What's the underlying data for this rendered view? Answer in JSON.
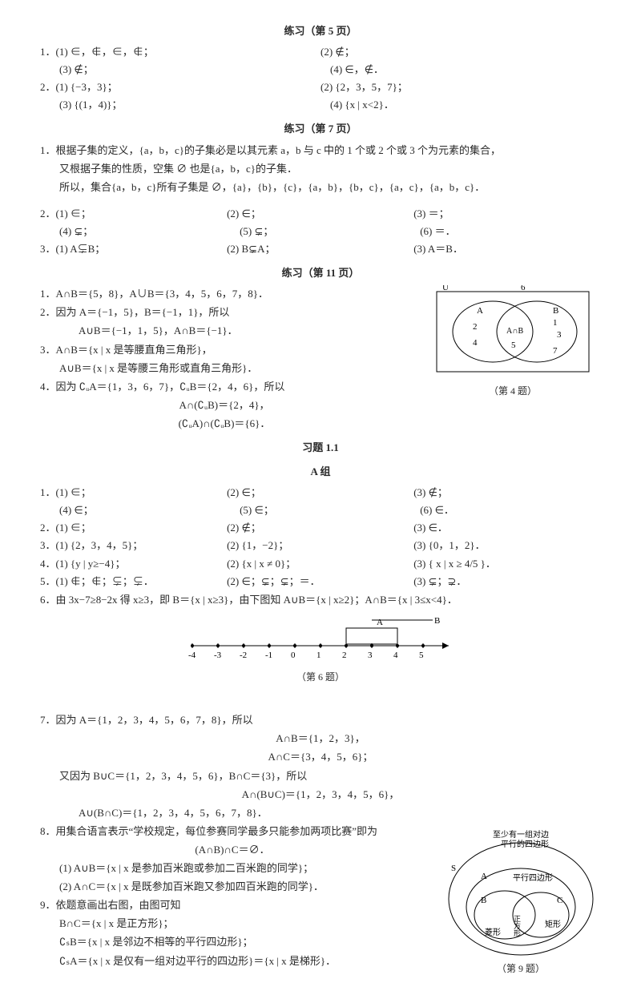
{
  "page5": {
    "title": "练习（第 5 页）",
    "q1": {
      "p1": "1．(1) ∈，∉，∈，∉；",
      "p2": "(2) ∉；",
      "p3": "(3) ∉；",
      "p4": "(4) ∈，∉．"
    },
    "q2": {
      "p1": "2．(1) {−3，3}；",
      "p2": "(2) {2，3，5，7}；",
      "p3": "(3) {(1，4)}；",
      "p4": "(4) {x | x<2}．"
    }
  },
  "page7": {
    "title": "练习（第 7 页）",
    "q1a": "1．根据子集的定义，{a，b，c}的子集必是以其元素 a，b 与 c 中的 1 个或 2 个或 3 个为元素的集合，",
    "q1b": "又根据子集的性质，空集 ∅ 也是{a，b，c}的子集．",
    "q1c": "所以，集合{a，b，c}所有子集是 ∅，{a}，{b}，{c}，{a，b}，{b，c}，{a，c}，{a，b，c}．",
    "q2": {
      "p1": "2．(1) ∈；",
      "p2": "(2) ∈；",
      "p3": "(3) ＝；",
      "p4": "(4) ⊊；",
      "p5": "(5) ⊊；",
      "p6": "(6) ＝．"
    },
    "q3": {
      "p1": "3．(1) A⊊B；",
      "p2": "(2) B⊊A；",
      "p3": "(3) A＝B．"
    }
  },
  "page11": {
    "title": "练习（第 11 页）",
    "q1": "1．A∩B＝{5，8}，A∪B＝{3，4，5，6，7，8}．",
    "q2a": "2．因为 A＝{−1，5}，B＝{−1，1}，所以",
    "q2b": "A∪B＝{−1，1，5}，A∩B＝{−1}．",
    "q3a": "3．A∩B＝{x | x 是等腰直角三角形}，",
    "q3b": "A∪B＝{x | x 是等腰三角形或直角三角形}．",
    "q4a": "4．因为 ∁ᵤA＝{1，3，6，7}，∁ᵤB＝{2，4，6}，所以",
    "q4b": "A∩(∁ᵤB)＝{2，4}，",
    "q4c": "(∁ᵤA)∩(∁ᵤB)＝{6}．",
    "venn": {
      "U": "U",
      "six": "6",
      "A": "A",
      "B": "B",
      "n2": "2",
      "n4": "4",
      "n5": "5",
      "n1": "1",
      "n3": "3",
      "n7": "7",
      "inter": "A∩B",
      "cap": "（第 4 题）"
    }
  },
  "ex11": {
    "title1": "习题 1.1",
    "title2": "A 组",
    "q1": {
      "p1": "1．(1) ∈；",
      "p2": "(2) ∈；",
      "p3": "(3) ∉；",
      "p4": "(4) ∈；",
      "p5": "(5) ∈；",
      "p6": "(6) ∈．"
    },
    "q2": {
      "p1": "2．(1) ∈；",
      "p2": "(2) ∉；",
      "p3": "(3) ∈．"
    },
    "q3": {
      "p1": "3．(1) {2，3，4，5}；",
      "p2": "(2) {1，−2}；",
      "p3": "(3) {0，1，2}．"
    },
    "q4": {
      "p1": "4．(1) {y | y≥−4}；",
      "p2": "(2) {x | x ≠ 0}；",
      "p3": "(3) { x | x ≥ 4/5 }．"
    },
    "q5": {
      "p1": "5．(1) ∉；∉；⊊；⊊．",
      "p2": "(2) ∈；⊊；⊊；＝．",
      "p3": "(3) ⊊；⊋．"
    },
    "q6": "6．由 3x−7≥8−2x 得 x≥3，即 B＝{x | x≥3}，由下图知 A∪B＝{x | x≥2}；A∩B＝{x | 3≤x<4}．",
    "numline": {
      "ticks": [
        "-4",
        "-3",
        "-2",
        "-1",
        "0",
        "1",
        "2",
        "3",
        "4",
        "5"
      ],
      "A": "A",
      "B": "B",
      "cap": "（第 6 题）"
    },
    "q7a": "7．因为 A＝{1，2，3，4，5，6，7，8}，所以",
    "q7b": "A∩B＝{1，2，3}，",
    "q7c": "A∩C＝{3，4，5，6}；",
    "q7d": "又因为 B∪C＝{1，2，3，4，5，6}，B∩C＝{3}，所以",
    "q7e": "A∩(B∪C)＝{1，2，3，4，5，6}，",
    "q7f": "A∪(B∩C)＝{1，2，3，4，5，6，7，8}．",
    "q8a": "8．用集合语言表示“学校规定，每位参赛同学最多只能参加两项比赛”即为",
    "q8b": "(A∩B)∩C＝∅．",
    "q8c": "(1) A∪B＝{x | x 是参加百米跑或参加二百米跑的同学}；",
    "q8d": "(2) A∩C＝{x | x 是既参加百米跑又参加四百米跑的同学}．",
    "q9a": "9．依题意画出右图，由图可知",
    "q9b": "B∩C＝{x | x 是正方形}；",
    "q9c": "∁ₛB＝{x | x 是邻边不相等的平行四边形}；",
    "q9d": "∁ₛA＝{x | x 是仅有一组对边平行的四边形}＝{x | x 是梯形}．",
    "venn2": {
      "top": "至少有一组对边\n平行的四边形",
      "S": "S",
      "A": "A",
      "pxl": "平行四边形",
      "B": "B",
      "rhom": "菱形",
      "C": "C",
      "rect": "矩形",
      "sq": "正方形",
      "cap": "（第 9 题）"
    }
  }
}
